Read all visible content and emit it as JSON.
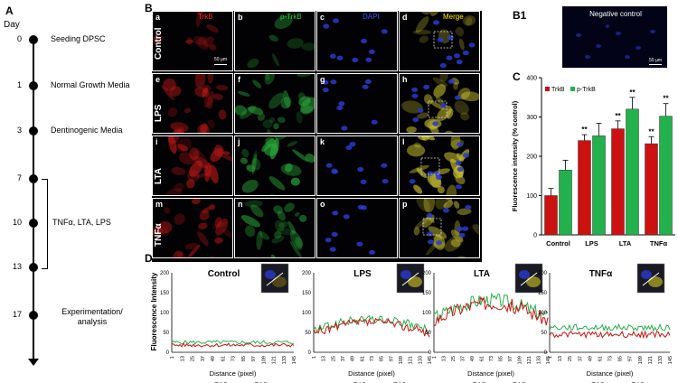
{
  "panels": {
    "A": "A",
    "B": "B",
    "B1": "B1",
    "C": "C",
    "D": "D"
  },
  "timeline": {
    "header": "Day",
    "events": [
      {
        "day": "0",
        "label": "Seeding DPSC"
      },
      {
        "day": "1",
        "label": "Normal Growth Media"
      },
      {
        "day": "3",
        "label": "Dentinogenic Media"
      },
      {
        "day": "7",
        "label": ""
      },
      {
        "day": "10",
        "label": "TNFα, LTA, LPS"
      },
      {
        "day": "13",
        "label": ""
      },
      {
        "day": "17",
        "label": "Experimentation/ analysis"
      }
    ]
  },
  "micrographs": {
    "column_titles": [
      "TrkB",
      "p-TrkB",
      "DAPI",
      "Merge"
    ],
    "title_colors": [
      "#ff2a2a",
      "#33cc33",
      "#3355ff",
      "#ffee00"
    ],
    "row_labels": [
      "Control",
      "LPS",
      "LTA",
      "TNFα"
    ],
    "letters": [
      "a",
      "b",
      "c",
      "d",
      "e",
      "f",
      "g",
      "h",
      "i",
      "j",
      "k",
      "l",
      "m",
      "n",
      "o",
      "p"
    ],
    "scale_bar": "50 µm",
    "negative_control_title": "Negative control",
    "negative_scale_bar": "50 µm"
  },
  "chart_data": [
    {
      "type": "bar",
      "ylabel": "Fluorescence intensity (% control)",
      "ylim": [
        0,
        400
      ],
      "yticks": [
        "0",
        "100",
        "200",
        "300",
        "400"
      ],
      "categories": [
        "Control",
        "LPS",
        "LTA",
        "TNFα"
      ],
      "series": [
        {
          "name": "TrkB",
          "color": "#cc1111",
          "values": [
            100,
            240,
            270,
            232
          ],
          "errors": [
            18,
            15,
            20,
            18
          ],
          "sig": [
            "",
            "**",
            "**",
            "**"
          ]
        },
        {
          "name": "p-TrkB",
          "color": "#22b14c",
          "values": [
            165,
            252,
            320,
            302
          ],
          "errors": [
            25,
            32,
            30,
            32
          ],
          "sig": [
            "",
            "",
            "**",
            "**"
          ]
        }
      ],
      "legend_position": "top-left"
    }
  ],
  "profiles": {
    "ylabel": "Fluorescence Intensity",
    "xlabel": "Distance (pixel)",
    "yticks": [
      "0",
      "50",
      "100",
      "150",
      "200"
    ],
    "xticks": [
      "1",
      "13",
      "25",
      "37",
      "49",
      "61",
      "73",
      "85",
      "97",
      "109",
      "121",
      "133",
      "145"
    ],
    "legend": [
      "TrkB",
      "p-TrkB"
    ],
    "titles": [
      "Control",
      "LPS",
      "LTA",
      "TNFα"
    ],
    "colors": {
      "trkb": "#cc1111",
      "ptrkb": "#22b14c"
    }
  }
}
